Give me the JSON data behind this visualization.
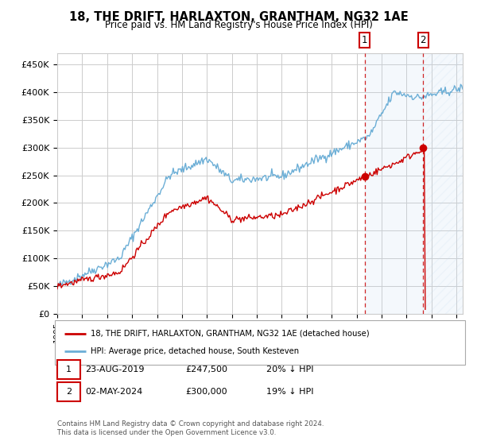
{
  "title": "18, THE DRIFT, HARLAXTON, GRANTHAM, NG32 1AE",
  "subtitle": "Price paid vs. HM Land Registry's House Price Index (HPI)",
  "ylabel_ticks": [
    "£0",
    "£50K",
    "£100K",
    "£150K",
    "£200K",
    "£250K",
    "£300K",
    "£350K",
    "£400K",
    "£450K"
  ],
  "ytick_values": [
    0,
    50000,
    100000,
    150000,
    200000,
    250000,
    300000,
    350000,
    400000,
    450000
  ],
  "xlim_start": 1995.0,
  "xlim_end": 2027.5,
  "ylim": [
    0,
    470000
  ],
  "hpi_color": "#6baed6",
  "price_color": "#cc0000",
  "sale1_x": 2019.646,
  "sale1_y": 247500,
  "sale2_x": 2024.336,
  "sale2_y": 300000,
  "legend_line1": "18, THE DRIFT, HARLAXTON, GRANTHAM, NG32 1AE (detached house)",
  "legend_line2": "HPI: Average price, detached house, South Kesteven",
  "note1_label": "1",
  "note1_date": "23-AUG-2019",
  "note1_price": "£247,500",
  "note1_hpi": "20% ↓ HPI",
  "note2_label": "2",
  "note2_date": "02-MAY-2024",
  "note2_price": "£300,000",
  "note2_hpi": "19% ↓ HPI",
  "footnote": "Contains HM Land Registry data © Crown copyright and database right 2024.\nThis data is licensed under the Open Government Licence v3.0.",
  "background_color": "#ffffff",
  "grid_color": "#cccccc"
}
